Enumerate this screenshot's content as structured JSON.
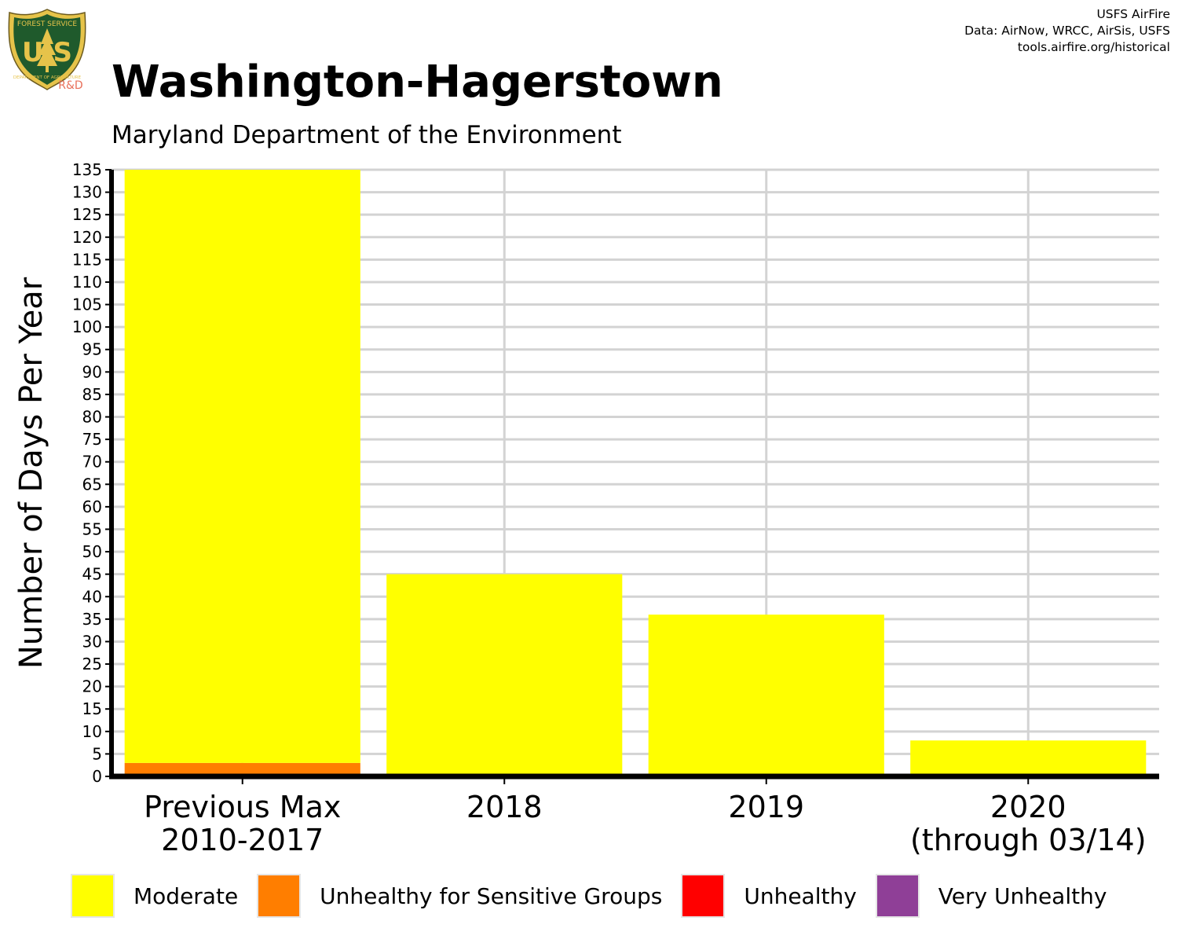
{
  "header": {
    "title": "Washington-Hagerstown",
    "subtitle": "Maryland Department of the Environment",
    "credits": [
      "USFS AirFire",
      "Data: AirNow, WRCC, AirSis, USFS",
      "tools.airfire.org/historical"
    ],
    "logo_text": {
      "top": "FOREST SERVICE",
      "letters": "U S",
      "bottom": "DEPARTMENT OF AGRICULTURE",
      "rd": "R&D"
    }
  },
  "colors": {
    "moderate": "#ffff00",
    "usg": "#ff7e00",
    "unhealthy": "#ff0000",
    "very_unhealthy": "#8f3f97",
    "grid": "#d3d3d3",
    "logo_green": "#1f5a2c",
    "logo_gold": "#e6c34a",
    "rd_red": "#e8705a"
  },
  "chart_data": {
    "type": "bar",
    "stacked": true,
    "categories": [
      [
        "Previous Max",
        "2010-2017"
      ],
      [
        "2018"
      ],
      [
        "2019"
      ],
      [
        "2020",
        "(through 03/14)"
      ]
    ],
    "series": [
      {
        "name": "Unhealthy for Sensitive Groups",
        "color": "#ff7e00",
        "values": [
          3,
          0,
          0,
          0
        ]
      },
      {
        "name": "Moderate",
        "color": "#ffff00",
        "values": [
          132,
          45,
          36,
          8
        ]
      },
      {
        "name": "Unhealthy",
        "color": "#ff0000",
        "values": [
          0,
          0,
          0,
          0
        ]
      },
      {
        "name": "Very Unhealthy",
        "color": "#8f3f97",
        "values": [
          0,
          0,
          0,
          0
        ]
      }
    ],
    "ylabel": "Number of Days Per Year",
    "ylim": [
      0,
      135
    ],
    "yticks": [
      0,
      5,
      10,
      15,
      20,
      25,
      30,
      35,
      40,
      45,
      50,
      55,
      60,
      65,
      70,
      75,
      80,
      85,
      90,
      95,
      100,
      105,
      110,
      115,
      120,
      125,
      130,
      135
    ],
    "grid": true,
    "legend_position": "bottom",
    "legend": [
      "Moderate",
      "Unhealthy for Sensitive Groups",
      "Unhealthy",
      "Very Unhealthy"
    ]
  }
}
